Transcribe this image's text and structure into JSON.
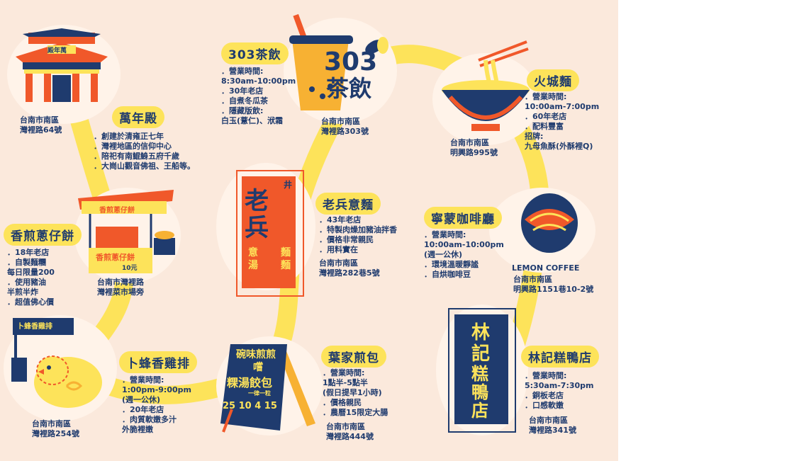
{
  "colors": {
    "background": "#fbe9dc",
    "path": "#fde35a",
    "navy": "#1f3b6e",
    "orange": "#f0582a",
    "yellow": "#fde35a"
  },
  "shops": {
    "wanian": {
      "title": "萬年殿",
      "sign": "殿年萬",
      "address": [
        "台南市南區",
        "灣裡路64號"
      ],
      "info": [
        "．創建於清雍正七年",
        "．灣裡地區的信仰中心",
        "．陪祀有南鯤鯓五府千歲",
        "．大崗山觀音佛祖、王船等。"
      ]
    },
    "tea303": {
      "title": "303茶飲",
      "cup_text_1": "303",
      "cup_text_2": "茶飲",
      "address": [
        "台南市南區",
        "灣裡路303號"
      ],
      "info": [
        "．營業時間:",
        "8:30am-10:00pm",
        "．30年老店",
        "．自煮冬瓜茶",
        "．隱藏版飲:",
        "白玉(薏仁)、洑霜"
      ]
    },
    "huocheng": {
      "title": "火城麵",
      "address": [
        "台南市南區",
        "明興路995號"
      ],
      "info": [
        "．營業時間:",
        "10:00am-7:00pm",
        "．60年老店",
        "．配料豐富",
        "招牌:",
        "九母魚酥(外酥裡Q)"
      ]
    },
    "laobing": {
      "title": "老兵意麵",
      "sign_big": "老兵",
      "sign_left": "意湯",
      "sign_right": "麵麵",
      "sign_mark": "井",
      "address": [
        "台南市南區",
        "灣裡路282巷5號"
      ],
      "info": [
        "．43年老店",
        "．特製肉燥加豬油拌香",
        "．價格非常親民",
        "．用料實在"
      ]
    },
    "scallion": {
      "title": "香煎蔥仔餅",
      "sign": "香煎蔥仔餅",
      "board": "香煎蔥仔餅",
      "board_price": "10元",
      "address": [
        "台南市灣裡路",
        "灣裡菜市場旁"
      ],
      "info": [
        "．18年老店",
        "．自製麵糰",
        "每日限量200",
        "．使用豬油",
        "半煎半炸",
        "．超值佛心價"
      ]
    },
    "lemon": {
      "title": "寧蒙咖啡廳",
      "logo": "LEMON COFFEE",
      "address": [
        "台南市南區",
        "明興路1151巷10-2號"
      ],
      "info": [
        "．營業時間:",
        "10:00am-10:00pm",
        "(週一公休)",
        "．環境溫暖靜謐",
        "．自烘咖啡豆"
      ]
    },
    "chicken": {
      "title": "卜蜂香雞排",
      "sign": "卜蜂香雞排",
      "address": [
        "台南市南區",
        "灣裡路254號"
      ],
      "info": [
        "．營業時間:",
        "1:00pm-9:00pm",
        "(週一公休)",
        "．20年老店",
        "．肉質軟嫩多汁",
        "外脆裡嫩"
      ]
    },
    "yejia": {
      "title": "葉家煎包",
      "board_line1": "碗味煎煎",
      "board_line2": "嚐",
      "board_line3": "粿湯餃包",
      "board_line4": "一律一粒",
      "board_prices": "25 10 4 15",
      "address": [
        "台南市南區",
        "灣裡路444號"
      ],
      "info": [
        "．營業時間:",
        "1點半-5點半",
        "(假日提早1小時)",
        "．價格親民",
        "．農曆15限定大腸"
      ]
    },
    "linji": {
      "title": "林記糕鴨店",
      "sign_left": "林記",
      "sign_right": "糕鴨店",
      "address": [
        "台南市南區",
        "灣裡路341號"
      ],
      "info": [
        "．營業時間:",
        "5:30am-7:30pm",
        "．銅板老店",
        "．口感軟嫩"
      ]
    }
  }
}
